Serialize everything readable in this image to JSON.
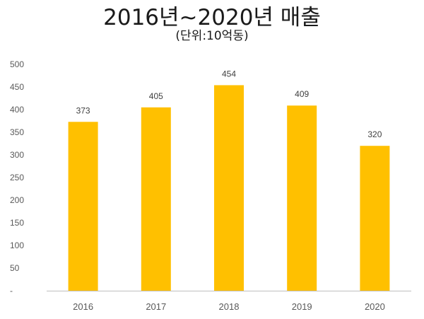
{
  "title": "2016년~2020년 매출",
  "subtitle": "(단위:10억동)",
  "colors": {
    "bar": "#FFC000",
    "axis": "#BFBFBF",
    "text": "#595959"
  },
  "chart_data": {
    "type": "bar",
    "title": "2016년~2020년 매출",
    "subtitle": "(단위:10억동)",
    "categories": [
      "2016",
      "2017",
      "2018",
      "2019",
      "2020"
    ],
    "values": [
      373,
      405,
      454,
      409,
      320
    ],
    "data_labels": [
      "373",
      "405",
      "454",
      "409",
      "320"
    ],
    "ylim": [
      0,
      500
    ],
    "yticks": [
      0,
      50,
      100,
      150,
      200,
      250,
      300,
      350,
      400,
      450,
      500
    ],
    "ytick_labels": [
      "-",
      "50",
      "100",
      "150",
      "200",
      "250",
      "300",
      "350",
      "400",
      "450",
      "500"
    ],
    "grid": false,
    "legend": "none"
  }
}
